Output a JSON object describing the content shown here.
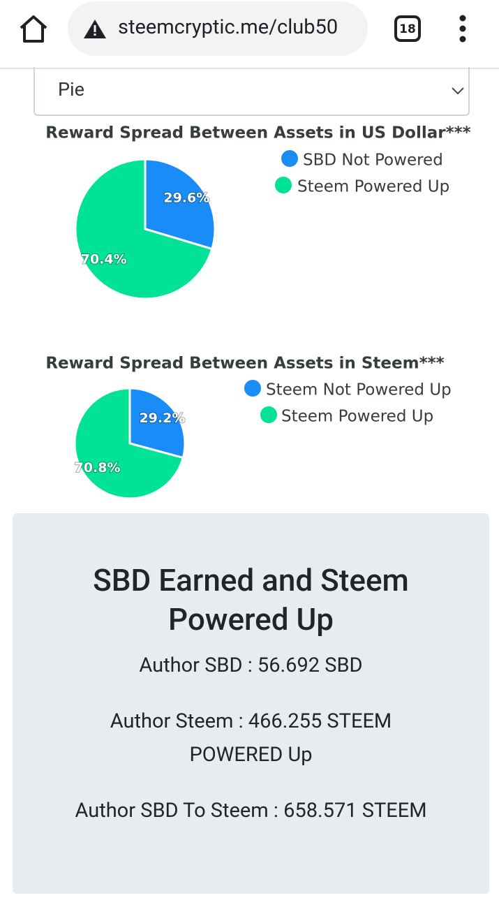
{
  "browser": {
    "url": "steemcryptic.me/club50",
    "tab_count": "18"
  },
  "select": {
    "value": "Pie"
  },
  "chart_data": [
    {
      "type": "pie",
      "title": "Reward Spread Between Assets in US Dollar***",
      "categories": [
        "SBD Not Powered",
        "Steem Powered Up"
      ],
      "values": [
        29.6,
        70.4
      ],
      "value_labels": [
        "29.6%",
        "70.4%"
      ],
      "colors": [
        "#1a8cf7",
        "#00e396"
      ]
    },
    {
      "type": "pie",
      "title": "Reward Spread Between Assets in Steem***",
      "categories": [
        "Steem Not Powered Up",
        "Steem Powered Up"
      ],
      "values": [
        29.2,
        70.8
      ],
      "value_labels": [
        "29.2%",
        "70.8%"
      ],
      "colors": [
        "#1a8cf7",
        "#00e396"
      ]
    }
  ],
  "summary": {
    "title": "SBD Earned and Steem Powered Up",
    "lines": [
      "Author SBD : 56.692 SBD",
      "Author Steem : 466.255 STEEM POWERED Up",
      "Author SBD To Steem : 658.571 STEEM"
    ]
  }
}
